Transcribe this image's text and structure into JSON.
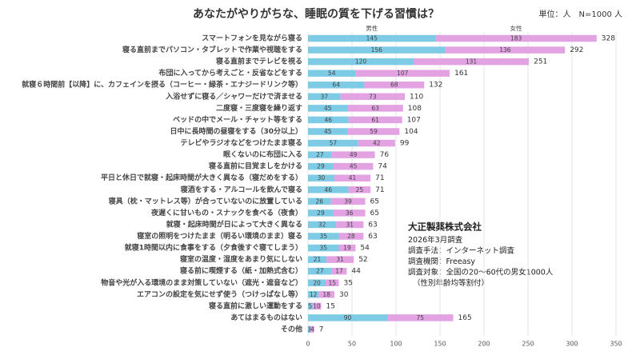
{
  "chart_data": {
    "type": "stacked_barh",
    "title": "あなたがやりがちな、睡眠の質を下げる習慣は？",
    "subtitle": "単位：人　N=1000 人",
    "categories": [
      "スマートフォンを見ながら寝る",
      "寝る直前までパソコン・タブレットで作業や視聴をする",
      "寝る直前までテレビを視る",
      "布団に入ってから考えごと・反省などをする",
      "就寝６時間前【以降】に、カフェインを摂る（コーヒー・緑茶・エナジードリンク等）",
      "入浴せずに寝る／シャワーだけで済ませる",
      "二度寝・三度寝を繰り返す",
      "ベッドの中でメール・チャット等をする",
      "日中に長時間の昼寝をする（30分以上）",
      "テレビやラジオなどをつけたまま寝る",
      "眠くないのに布団に入る",
      "寝る直前に目覚ましをかける",
      "平日と休日で就寝・起床時間が大きく異なる（寝だめをする）",
      "寝酒をする・アルコールを飲んで寝る",
      "寝具（枕・マットレス等）が合っていないのに放置している",
      "夜遅くに甘いもの・スナックを食べる（夜食）",
      "就寝・起床時間が日によって大きく異なる",
      "寝室の照明をつけたまま（明るい環境のまま）寝る",
      "就寝1時間以内に食事をする（夕食後すぐ寝てしまう）",
      "寝室の温度・湿度をあまり気にしない",
      "寝る前に喫煙する（紙・加熱式含む）",
      "物音や光が入る環境のまま対策していない（遮光・遮音など）",
      "エアコンの設定を気にせず使う（つけっぱなし等）",
      "寝る直前に激しい運動をする",
      "あてはまるものはない",
      "その他"
    ],
    "series": [
      {
        "name": "男性",
        "color": "#7ecbe6",
        "values": [
          145,
          156,
          120,
          54,
          64,
          37,
          45,
          46,
          45,
          57,
          27,
          29,
          30,
          46,
          26,
          29,
          32,
          35,
          35,
          21,
          27,
          20,
          12,
          5,
          90,
          3
        ]
      },
      {
        "name": "女性",
        "color": "#e3a3e3",
        "values": [
          183,
          136,
          131,
          107,
          68,
          73,
          63,
          61,
          59,
          42,
          49,
          45,
          41,
          25,
          39,
          36,
          31,
          28,
          19,
          31,
          17,
          15,
          18,
          10,
          75,
          4
        ]
      }
    ],
    "totals": [
      328,
      292,
      251,
      161,
      132,
      110,
      108,
      107,
      104,
      99,
      76,
      74,
      71,
      71,
      65,
      65,
      63,
      63,
      54,
      52,
      44,
      35,
      30,
      15,
      165,
      7
    ],
    "xlim": [
      0,
      350
    ],
    "xticks": [
      0,
      50,
      100,
      150,
      200,
      250,
      300,
      350
    ],
    "grid": true,
    "annotation": [
      "大正製薬株式会社",
      "2026年3月調査",
      "調査手法：インターネット調査",
      "調査機関：Freeasy",
      "調査対象：全国の20〜60代の男女1000人",
      "（性別年齢均等割付）"
    ]
  }
}
